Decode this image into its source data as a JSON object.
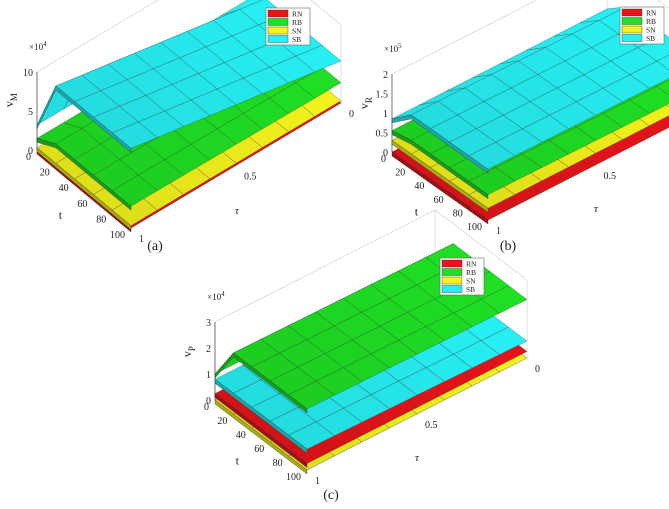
{
  "figure": {
    "subfigure_labels": [
      "(a)",
      "(b)",
      "(c)"
    ]
  },
  "legend_colors": {
    "RN": "#e8141a",
    "RB": "#1fe024",
    "SN": "#f4f41c",
    "SB": "#27f0f4"
  },
  "chart_data": [
    {
      "type": "surface",
      "panel": "(a)",
      "zlabel": "v_M",
      "zexponent": "×10^4",
      "xlabel": "t",
      "ylabel": "τ",
      "x_ticks": [
        "0",
        "20",
        "40",
        "60",
        "80",
        "100"
      ],
      "y_ticks": [
        "1",
        "0.5",
        "0"
      ],
      "z_ticks": [
        "0",
        "5",
        "10"
      ],
      "zlim": [
        0,
        10
      ],
      "legend": [
        "RN",
        "RB",
        "SN",
        "SB"
      ],
      "series": [
        {
          "name": "SB",
          "near_surface": [
            3.2,
            10.2,
            10.2,
            10.2,
            10.2,
            10.2
          ],
          "far_surface": [
            3.2,
            5.4,
            5.4,
            5.4,
            5.4,
            5.4
          ]
        },
        {
          "name": "RB",
          "near_surface": [
            1.5,
            2.8,
            2.8,
            2.8,
            2.8,
            2.8
          ],
          "far_surface": [
            1.5,
            2.6,
            2.6,
            2.6,
            2.6,
            2.6
          ]
        },
        {
          "name": "SN",
          "near_surface": [
            0.3,
            0.3,
            0.3,
            0.3,
            0.3,
            0.3
          ],
          "far_surface": [
            0.3,
            0.3,
            0.3,
            0.3,
            0.3,
            0.3
          ]
        },
        {
          "name": "RN",
          "near_surface": [
            0.0,
            0.0,
            0.0,
            0.0,
            0.0,
            0.0
          ],
          "far_surface": [
            0.0,
            0.0,
            0.0,
            0.0,
            0.0,
            0.0
          ]
        }
      ]
    },
    {
      "type": "surface",
      "panel": "(b)",
      "zlabel": "v_R",
      "zexponent": "×10^5",
      "xlabel": "t",
      "ylabel": "τ",
      "x_ticks": [
        "0",
        "20",
        "40",
        "60",
        "80",
        "100"
      ],
      "y_ticks": [
        "1",
        "0.5",
        "0"
      ],
      "z_ticks": [
        "0",
        "0.5",
        "1",
        "1.5",
        "2"
      ],
      "zlim": [
        0,
        2
      ],
      "legend": [
        "RN",
        "RB",
        "SN",
        "SB"
      ],
      "series": [
        {
          "name": "SB",
          "near_surface": [
            0.85,
            1.3,
            1.3,
            1.3,
            1.3,
            1.3
          ],
          "far_surface": [
            0.85,
            1.25,
            1.25,
            1.25,
            1.25,
            1.25
          ]
        },
        {
          "name": "RB",
          "near_surface": [
            0.55,
            0.65,
            0.65,
            0.65,
            0.65,
            0.65
          ],
          "far_surface": [
            0.55,
            0.6,
            0.6,
            0.6,
            0.6,
            0.6
          ]
        },
        {
          "name": "SN",
          "near_surface": [
            0.3,
            0.3,
            0.3,
            0.3,
            0.3,
            0.3
          ],
          "far_surface": [
            0.3,
            0.3,
            0.3,
            0.3,
            0.3,
            0.3
          ]
        },
        {
          "name": "RN",
          "near_surface": [
            0.0,
            0.0,
            0.0,
            0.0,
            0.0,
            0.0
          ],
          "far_surface": [
            0.0,
            0.0,
            0.0,
            0.0,
            0.0,
            0.0
          ]
        }
      ]
    },
    {
      "type": "surface",
      "panel": "(c)",
      "zlabel": "v_P",
      "zexponent": "×10^4",
      "xlabel": "t",
      "ylabel": "τ",
      "x_ticks": [
        "0",
        "20",
        "40",
        "60",
        "80",
        "100"
      ],
      "y_ticks": [
        "1",
        "0.5",
        "0"
      ],
      "z_ticks": [
        "0",
        "1",
        "2",
        "3"
      ],
      "zlim": [
        0,
        3
      ],
      "legend": [
        "RN",
        "RB",
        "SN",
        "SB"
      ],
      "series": [
        {
          "name": "RB",
          "near_surface": [
            1.0,
            2.35,
            2.35,
            2.35,
            2.35,
            2.35
          ],
          "far_surface": [
            1.0,
            2.25,
            2.25,
            2.25,
            2.25,
            2.25
          ]
        },
        {
          "name": "SB",
          "near_surface": [
            0.8,
            0.8,
            0.8,
            0.8,
            0.8,
            0.8
          ],
          "far_surface": [
            0.8,
            0.65,
            0.65,
            0.65,
            0.65,
            0.65
          ]
        },
        {
          "name": "RN",
          "near_surface": [
            0.25,
            0.25,
            0.25,
            0.25,
            0.25,
            0.25
          ],
          "far_surface": [
            0.25,
            0.25,
            0.25,
            0.25,
            0.25,
            0.25
          ]
        },
        {
          "name": "SN",
          "near_surface": [
            0.0,
            0.0,
            0.0,
            0.0,
            0.0,
            0.0
          ],
          "far_surface": [
            0.0,
            0.0,
            0.0,
            0.0,
            0.0,
            0.0
          ]
        }
      ]
    }
  ]
}
